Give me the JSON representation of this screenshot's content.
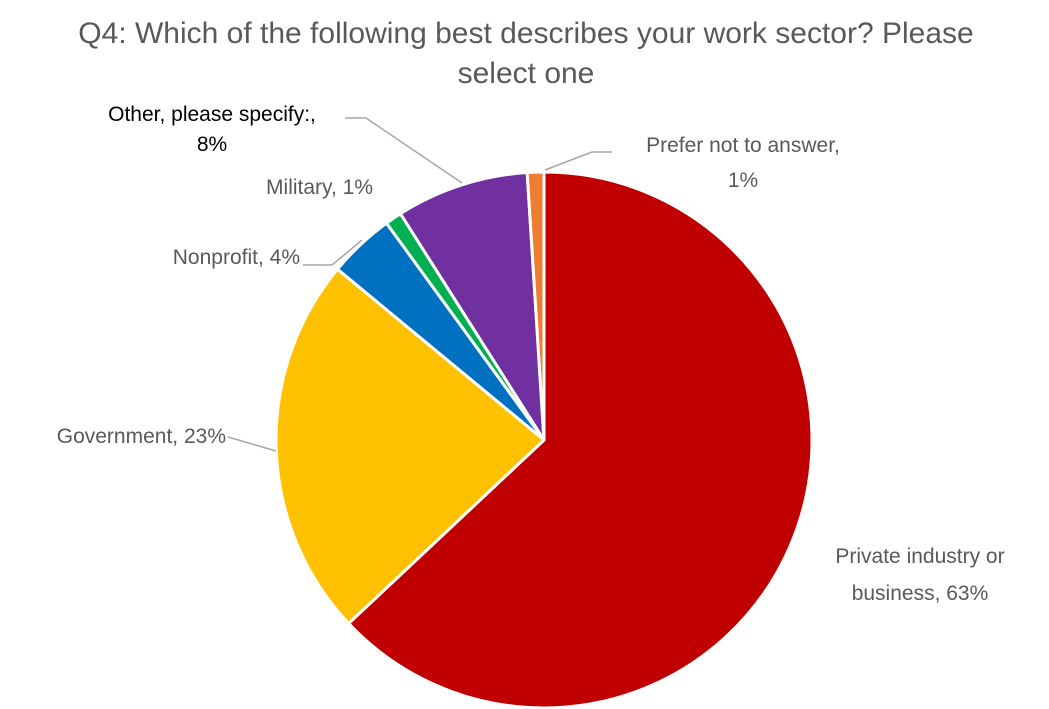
{
  "chart_data": {
    "type": "pie",
    "title_line1": "Q4: Which of the following best describes your work sector? Please",
    "title_line2": "select one",
    "slices": [
      {
        "label_line1": "Private industry or",
        "label_line2": "business, 63%",
        "value": 63,
        "color": "#C00000"
      },
      {
        "label_line1": "Government, 23%",
        "label_line2": "",
        "value": 23,
        "color": "#FFC000"
      },
      {
        "label_line1": "Nonprofit, 4%",
        "label_line2": "",
        "value": 4,
        "color": "#0070C0"
      },
      {
        "label_line1": "Military, 1%",
        "label_line2": "",
        "value": 1,
        "color": "#00B050"
      },
      {
        "label_line1": "Other, please specify:,",
        "label_line2": "8%",
        "value": 8,
        "color": "#7030A0"
      },
      {
        "label_line1": "Prefer not to answer,",
        "label_line2": "1%",
        "value": 1,
        "color": "#ED7D31"
      }
    ]
  }
}
